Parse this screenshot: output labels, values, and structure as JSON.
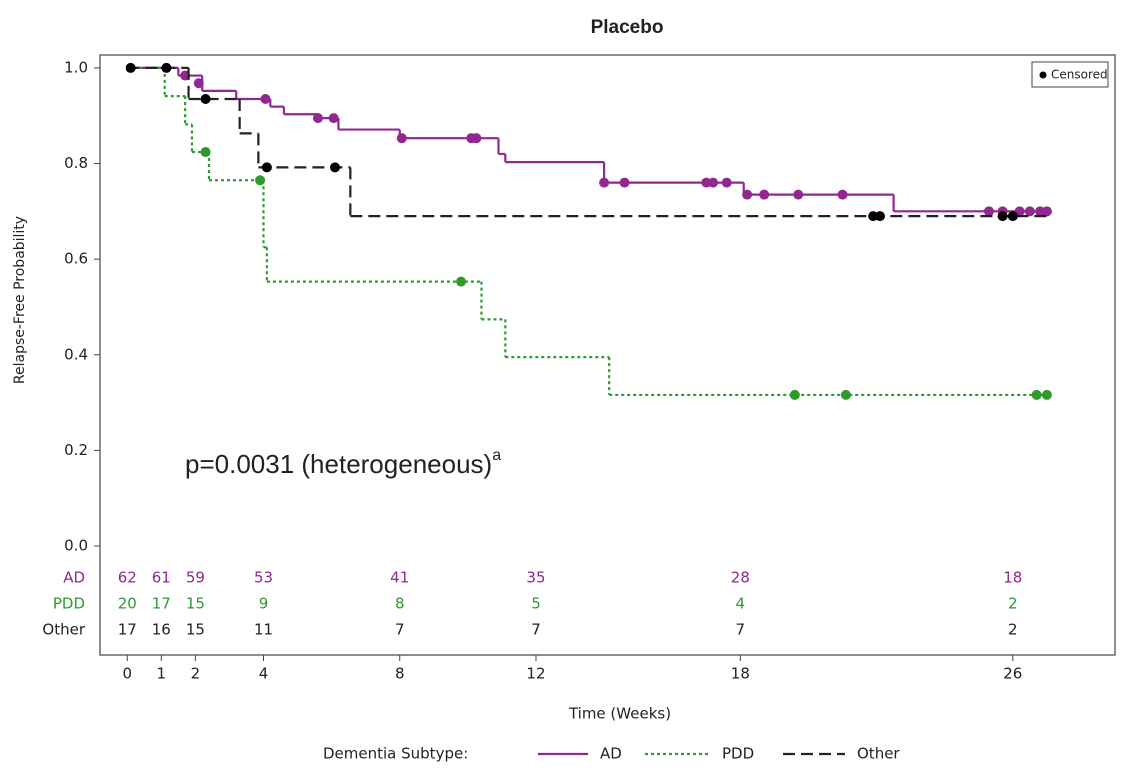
{
  "chart_data": {
    "type": "km",
    "title": "Placebo",
    "y_label": "Relapse-Free Probability",
    "x_label": "Time (Weeks)",
    "annotation": "p=0.0031 (heterogeneous)",
    "annotation_sup": "a",
    "legend_title": "Dementia Subtype:",
    "censored_label": "Censored",
    "censored_color": "#000000",
    "xlim": [
      -0.8,
      29
    ],
    "ylim": [
      -0.228,
      1.027
    ],
    "xticks": [
      0,
      1,
      2,
      4,
      8,
      12,
      18,
      26
    ],
    "yticks": [
      {
        "value": 0,
        "label": "0.0"
      },
      0.2,
      0.4,
      0.6,
      0.8,
      {
        "value": 1,
        "label": "1.0"
      }
    ],
    "series": [
      {
        "name": "AD",
        "color": "#92278f",
        "line_style": "solid",
        "x": [
          0,
          1.5,
          2.2,
          3.2,
          4.2,
          4.6,
          5.6,
          6.2,
          8.0,
          10.9,
          11.1,
          14.0,
          18.1,
          22.5,
          27.0
        ],
        "values": [
          1.0,
          0.984,
          0.952,
          0.935,
          0.919,
          0.903,
          0.895,
          0.871,
          0.853,
          0.82,
          0.803,
          0.76,
          0.735,
          0.7,
          0.7
        ],
        "censored_x": [
          1.7,
          2.1,
          4.06,
          5.6,
          6.06,
          8.06,
          10.1,
          10.25,
          14.0,
          14.6,
          17.0,
          17.2,
          17.6,
          18.2,
          18.7,
          19.7,
          21.0,
          25.3,
          25.7,
          26.2,
          26.5,
          26.8,
          27.0
        ],
        "censored_values": [
          0.984,
          0.968,
          0.935,
          0.895,
          0.895,
          0.853,
          0.853,
          0.853,
          0.76,
          0.76,
          0.76,
          0.76,
          0.76,
          0.735,
          0.735,
          0.735,
          0.735,
          0.7,
          0.7,
          0.7,
          0.7,
          0.7,
          0.7
        ],
        "at_risk": [
          62,
          61,
          59,
          53,
          41,
          35,
          28,
          18
        ]
      },
      {
        "name": "PDD",
        "color": "#2e9a2e",
        "line_style": "dotted",
        "x": [
          0,
          1.1,
          1.7,
          1.9,
          2.4,
          4.0,
          4.1,
          10.4,
          11.1,
          14.15,
          27.0
        ],
        "values": [
          1.0,
          0.941,
          0.882,
          0.824,
          0.765,
          0.625,
          0.553,
          0.474,
          0.395,
          0.316,
          0.316
        ],
        "censored_x": [
          2.3,
          3.9,
          9.8,
          19.6,
          21.1,
          26.7,
          27.0
        ],
        "censored_values": [
          0.824,
          0.765,
          0.553,
          0.316,
          0.316,
          0.316,
          0.316
        ],
        "at_risk": [
          20,
          17,
          15,
          9,
          8,
          5,
          4,
          2
        ]
      },
      {
        "name": "Other",
        "color": "#222222",
        "line_style": "dashed",
        "x": [
          0,
          1.8,
          3.3,
          3.85,
          6.55,
          27.0
        ],
        "values": [
          1.0,
          0.935,
          0.863,
          0.792,
          0.69,
          0.69
        ],
        "censored_x": [
          0.1,
          1.15,
          2.3,
          4.1,
          6.1,
          21.9,
          22.1,
          25.7,
          26.0
        ],
        "censored_values": [
          1.0,
          1.0,
          0.935,
          0.792,
          0.792,
          0.69,
          0.69,
          0.69,
          0.69
        ],
        "at_risk": [
          17,
          16,
          15,
          11,
          7,
          7,
          7,
          2
        ]
      }
    ]
  }
}
